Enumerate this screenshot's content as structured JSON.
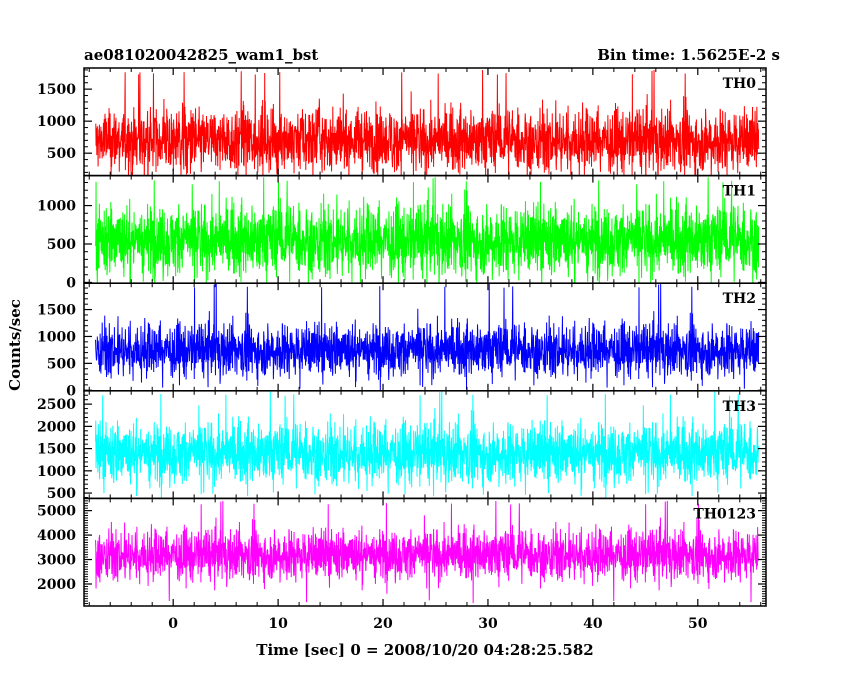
{
  "chart_data": {
    "type": "line",
    "title": "ae081020042825_wam1_bst",
    "subtitle": "Bin time: 1.5625E-2 s",
    "xlabel": "Time [sec] 0 = 2008/10/20 04:28:25.582",
    "ylabel": "Counts/sec",
    "xlim": [
      -8.5,
      56.5
    ],
    "x_ticks": [
      0,
      10,
      20,
      30,
      40,
      50
    ],
    "grid": false,
    "panels": [
      {
        "name": "TH0",
        "color": "#ff0000",
        "ylim": [
          150,
          1830
        ],
        "y_ticks": [
          500,
          1000,
          1500
        ],
        "data_x_range": [
          -7.4,
          55.8
        ],
        "mean": 700,
        "typical_min": 300,
        "typical_max": 1300,
        "peak": 1800,
        "trough": 160
      },
      {
        "name": "TH1",
        "color": "#00ff00",
        "ylim": [
          -10,
          1390
        ],
        "y_ticks": [
          0,
          500,
          1000
        ],
        "data_x_range": [
          -7.4,
          55.8
        ],
        "mean": 550,
        "typical_min": 100,
        "typical_max": 1050,
        "peak": 1370,
        "trough": 0
      },
      {
        "name": "TH2",
        "color": "#0000ff",
        "ylim": [
          -10,
          1990
        ],
        "y_ticks": [
          0,
          500,
          1000,
          1500
        ],
        "data_x_range": [
          -7.4,
          55.8
        ],
        "mean": 750,
        "typical_min": 250,
        "typical_max": 1250,
        "peak": 1980,
        "trough": 0
      },
      {
        "name": "TH3",
        "color": "#00ffff",
        "ylim": [
          380,
          2800
        ],
        "y_ticks": [
          500,
          1000,
          1500,
          2000,
          2500
        ],
        "data_x_range": [
          -7.4,
          55.8
        ],
        "mean": 1400,
        "typical_min": 800,
        "typical_max": 2200,
        "peak": 2790,
        "trough": 420
      },
      {
        "name": "TH0123",
        "color": "#ff00ff",
        "ylim": [
          1100,
          5500
        ],
        "y_ticks": [
          2000,
          3000,
          4000,
          5000
        ],
        "data_x_range": [
          -7.4,
          55.8
        ],
        "mean": 3200,
        "typical_min": 2200,
        "typical_max": 4300,
        "peak": 5400,
        "trough": 1200
      }
    ]
  }
}
